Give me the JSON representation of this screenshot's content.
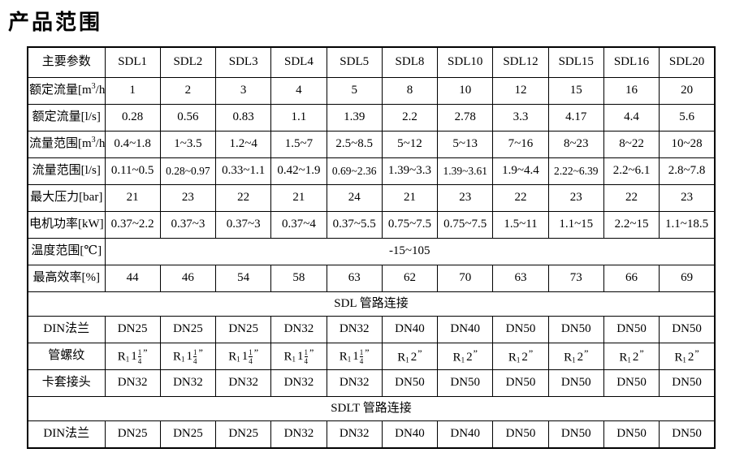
{
  "title": "产品范围",
  "table": {
    "columns": [
      "主要参数",
      "SDL1",
      "SDL2",
      "SDL3",
      "SDL4",
      "SDL5",
      "SDL8",
      "SDL10",
      "SDL12",
      "SDL15",
      "SDL16",
      "SDL20"
    ],
    "rows": [
      {
        "type": "data",
        "label": "额定流量[m³/h]",
        "values": [
          "1",
          "2",
          "3",
          "4",
          "5",
          "8",
          "10",
          "12",
          "15",
          "16",
          "20"
        ]
      },
      {
        "type": "data",
        "label": "额定流量[l/s]",
        "values": [
          "0.28",
          "0.56",
          "0.83",
          "1.1",
          "1.39",
          "2.2",
          "2.78",
          "3.3",
          "4.17",
          "4.4",
          "5.6"
        ]
      },
      {
        "type": "data",
        "label": "流量范围[m³/h]",
        "values": [
          "0.4~1.8",
          "1~3.5",
          "1.2~4",
          "1.5~7",
          "2.5~8.5",
          "5~12",
          "5~13",
          "7~16",
          "8~23",
          "8~22",
          "10~28"
        ]
      },
      {
        "type": "data",
        "label": "流量范围[l/s]",
        "values": [
          "0.11~0.5",
          "0.28~0.97",
          "0.33~1.1",
          "0.42~1.9",
          "0.69~2.36",
          "1.39~3.3",
          "1.39~3.61",
          "1.9~4.4",
          "2.22~6.39",
          "2.2~6.1",
          "2.8~7.8"
        ]
      },
      {
        "type": "data",
        "label": "最大压力[bar]",
        "values": [
          "21",
          "23",
          "22",
          "21",
          "24",
          "21",
          "23",
          "22",
          "23",
          "22",
          "23"
        ]
      },
      {
        "type": "data",
        "label": "电机功率[kW]",
        "values": [
          "0.37~2.2",
          "0.37~3",
          "0.37~3",
          "0.37~4",
          "0.37~5.5",
          "0.75~7.5",
          "0.75~7.5",
          "1.5~11",
          "1.1~15",
          "2.2~15",
          "1.1~18.5"
        ]
      },
      {
        "type": "span",
        "label": "温度范围[℃]",
        "value": "-15~105"
      },
      {
        "type": "data",
        "label": "最高效率[%]",
        "values": [
          "44",
          "46",
          "54",
          "58",
          "63",
          "62",
          "70",
          "63",
          "73",
          "66",
          "69"
        ]
      },
      {
        "type": "section",
        "label": "SDL 管路连接"
      },
      {
        "type": "data",
        "label": "DIN法兰",
        "values": [
          "DN25",
          "DN25",
          "DN25",
          "DN32",
          "DN32",
          "DN40",
          "DN40",
          "DN50",
          "DN50",
          "DN50",
          "DN50"
        ]
      },
      {
        "type": "data",
        "label": "管螺纹",
        "values": [
          {
            "kind": "thread",
            "prefix": "R",
            "subscript": "1",
            "size": "1",
            "frac_num": "1",
            "frac_den": "4",
            "quote": "”"
          },
          {
            "kind": "thread",
            "prefix": "R",
            "subscript": "1",
            "size": "1",
            "frac_num": "1",
            "frac_den": "4",
            "quote": "”"
          },
          {
            "kind": "thread",
            "prefix": "R",
            "subscript": "1",
            "size": "1",
            "frac_num": "1",
            "frac_den": "4",
            "quote": "”"
          },
          {
            "kind": "thread",
            "prefix": "R",
            "subscript": "1",
            "size": "1",
            "frac_num": "1",
            "frac_den": "4",
            "quote": "”"
          },
          {
            "kind": "thread",
            "prefix": "R",
            "subscript": "1",
            "size": "1",
            "frac_num": "1",
            "frac_den": "4",
            "quote": "”"
          },
          {
            "kind": "thread",
            "prefix": "R",
            "subscript": "1",
            "size": "2",
            "quote": "”"
          },
          {
            "kind": "thread",
            "prefix": "R",
            "subscript": "1",
            "size": "2",
            "quote": "”"
          },
          {
            "kind": "thread",
            "prefix": "R",
            "subscript": "1",
            "size": "2",
            "quote": "”"
          },
          {
            "kind": "thread",
            "prefix": "R",
            "subscript": "1",
            "size": "2",
            "quote": "”"
          },
          {
            "kind": "thread",
            "prefix": "R",
            "subscript": "1",
            "size": "2",
            "quote": "”"
          },
          {
            "kind": "thread",
            "prefix": "R",
            "subscript": "1",
            "size": "2",
            "quote": "”"
          }
        ]
      },
      {
        "type": "data",
        "label": "卡套接头",
        "values": [
          "DN32",
          "DN32",
          "DN32",
          "DN32",
          "DN32",
          "DN50",
          "DN50",
          "DN50",
          "DN50",
          "DN50",
          "DN50"
        ]
      },
      {
        "type": "section",
        "label": "SDLT 管路连接"
      },
      {
        "type": "data",
        "label": "DIN法兰",
        "values": [
          "DN25",
          "DN25",
          "DN25",
          "DN32",
          "DN32",
          "DN40",
          "DN40",
          "DN50",
          "DN50",
          "DN50",
          "DN50"
        ]
      }
    ]
  }
}
